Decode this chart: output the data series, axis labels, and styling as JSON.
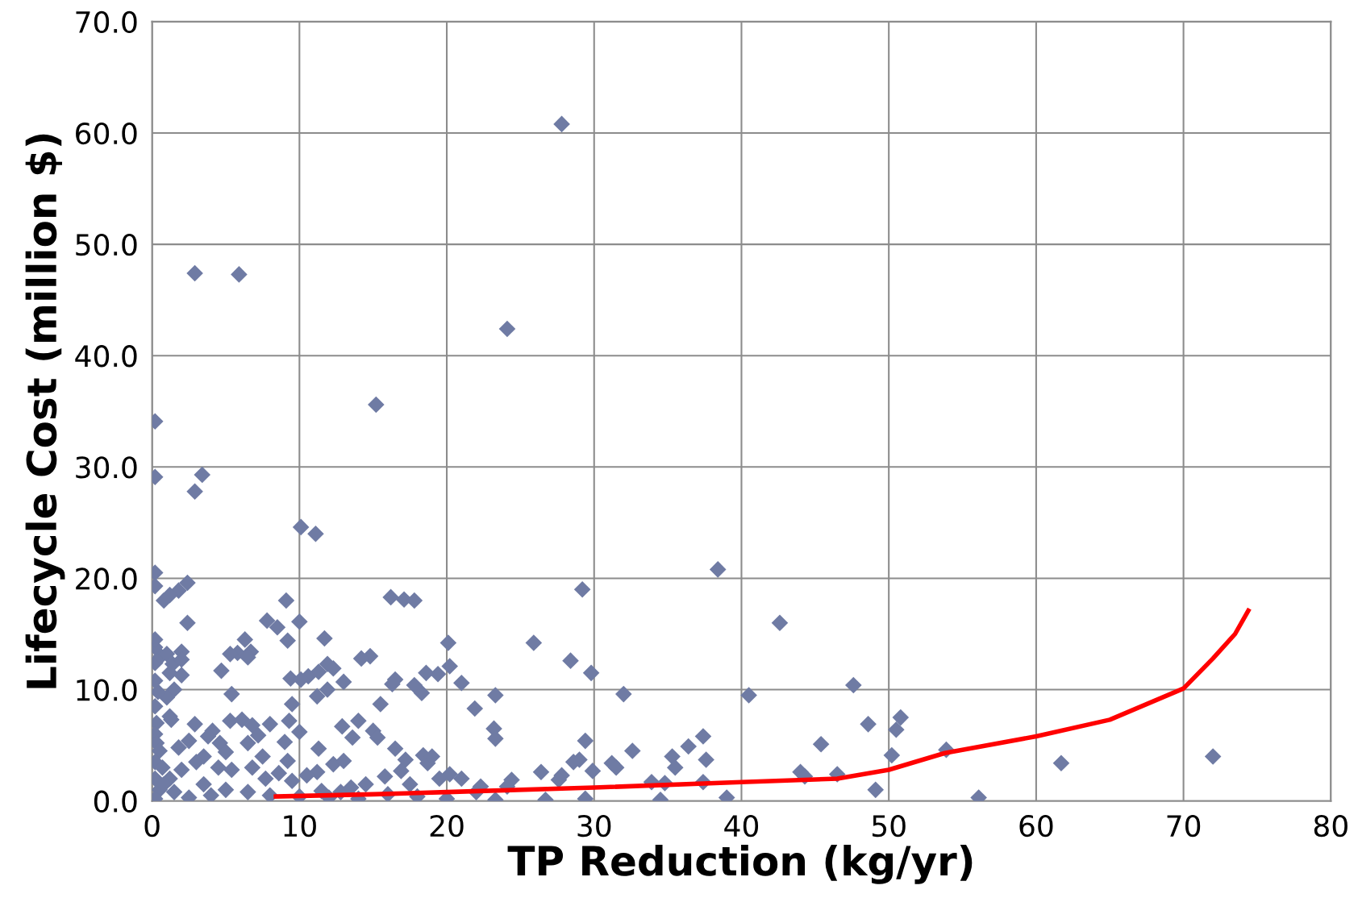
{
  "chart_data": {
    "type": "scatter",
    "xlabel": "TP Reduction (kg/yr)",
    "ylabel": "Lifecycle Cost (million $)",
    "xlim": [
      0,
      80
    ],
    "xticks": [
      0,
      10,
      20,
      30,
      40,
      50,
      60,
      70,
      80
    ],
    "ylim": [
      0,
      70
    ],
    "yticks": [
      {
        "value": 0,
        "label": "0.0"
      },
      {
        "value": 10,
        "label": "10.0"
      },
      {
        "value": 20,
        "label": "20.0"
      },
      {
        "value": 30,
        "label": "30.0"
      },
      {
        "value": 40,
        "label": "40.0"
      },
      {
        "value": 50,
        "label": "50.0"
      },
      {
        "value": 60,
        "label": "60.0"
      },
      {
        "value": 70,
        "label": "70.0"
      }
    ],
    "grid": true,
    "legend": false,
    "series": [
      {
        "color": "#6f7ba4",
        "marker": "diamond",
        "x": [
          27.8,
          2.9,
          5.9,
          24.1,
          15.2,
          0.2,
          0.2,
          3.4,
          2.9,
          10.1,
          11.1,
          0.2,
          0.2,
          2.4,
          1.8,
          1.2,
          0.8,
          38.4,
          29.2,
          16.2,
          17.1,
          17.8,
          9.1,
          7.8,
          8.5,
          10.0,
          9.2,
          11.7,
          2.4,
          42.6,
          6.3,
          5.8,
          6.7,
          6.5,
          5.3,
          20.1,
          25.9,
          14.8,
          14.2,
          11.9,
          12.3,
          11.3,
          10.6,
          9.4,
          10.1,
          28.4,
          20.2,
          19.4,
          18.6,
          29.8,
          13.0,
          16.5,
          16.3,
          17.8,
          18.3,
          21.0,
          11.2,
          11.9,
          0.2,
          0.6,
          0.2,
          0.2,
          1.0,
          2.0,
          1.4,
          2.0,
          1.2,
          2.0,
          1.5,
          1.0,
          0.4,
          0.2,
          0.2,
          0.3,
          1.2,
          0.2,
          0.3,
          0.5,
          0.2,
          0.7,
          0.2,
          0.5,
          0.2,
          40.5,
          47.6,
          32.0,
          23.3,
          21.9,
          15.5,
          4.7,
          5.4,
          1.3,
          2.9,
          4.1,
          3.8,
          5.3,
          6.1,
          6.8,
          8.0,
          7.2,
          6.5,
          4.6,
          2.5,
          1.8,
          3.5,
          5.0,
          7.5,
          9.0,
          9.3,
          9.5,
          10.0,
          13.6,
          12.9,
          15.0,
          15.3,
          14.0,
          11.3,
          12.3,
          13.0,
          23.2,
          23.3,
          29.4,
          32.6,
          31.2,
          31.5,
          29.0,
          28.6,
          36.4,
          37.4,
          37.6,
          35.3,
          35.5,
          37.4,
          45.4,
          48.6,
          50.8,
          50.5,
          50.2,
          53.9,
          49.1,
          46.5,
          44.0,
          44.3,
          56.1,
          61.7,
          72.0,
          39.0,
          34.5,
          29.4,
          26.7,
          23.3,
          26.4,
          27.8,
          27.6,
          29.9,
          33.9,
          34.8,
          24.4,
          24.1,
          22.3,
          21.0,
          20.2,
          19.5,
          18.7,
          18.4,
          19.0,
          17.2,
          16.5,
          16.9,
          15.8,
          14.5,
          12.8,
          11.2,
          10.5,
          9.2,
          8.6,
          7.7,
          6.8,
          5.4,
          4.5,
          3.0,
          2.0,
          1.2,
          3.5,
          5.0,
          6.5,
          8.0,
          10.0,
          12.0,
          14.0,
          16.0,
          18.0,
          20.0,
          22.0,
          13.5,
          17.5,
          9.5,
          11.5,
          4.0,
          2.5,
          1.5,
          0.8
        ],
        "values": [
          60.8,
          47.4,
          47.3,
          42.4,
          35.6,
          34.1,
          29.1,
          29.3,
          27.8,
          24.6,
          24.0,
          20.5,
          19.3,
          19.6,
          18.9,
          18.5,
          18.0,
          20.8,
          19.0,
          18.3,
          18.1,
          18.0,
          18.0,
          16.2,
          15.6,
          16.1,
          14.4,
          14.6,
          16.0,
          16.0,
          14.5,
          13.3,
          13.4,
          12.9,
          13.2,
          14.2,
          14.2,
          13.0,
          12.8,
          12.3,
          11.9,
          11.6,
          11.2,
          11.0,
          10.9,
          12.6,
          12.1,
          11.4,
          11.5,
          11.5,
          10.7,
          10.9,
          10.5,
          10.4,
          9.7,
          10.6,
          9.4,
          10.0,
          12.4,
          13.0,
          13.8,
          14.5,
          13.2,
          13.4,
          12.3,
          12.7,
          11.5,
          11.3,
          10.0,
          9.3,
          9.8,
          10.8,
          8.5,
          7.0,
          7.6,
          6.0,
          5.2,
          4.5,
          3.5,
          3.0,
          2.0,
          1.0,
          0.2,
          9.5,
          10.4,
          9.6,
          9.5,
          8.3,
          8.7,
          11.7,
          9.6,
          7.3,
          6.9,
          6.3,
          5.8,
          7.2,
          7.3,
          6.8,
          6.9,
          5.9,
          5.2,
          5.2,
          5.4,
          4.8,
          4.0,
          4.4,
          4.0,
          5.3,
          7.2,
          8.7,
          6.2,
          5.7,
          6.7,
          6.3,
          5.7,
          7.2,
          4.7,
          3.3,
          3.6,
          6.5,
          5.6,
          5.4,
          4.5,
          3.4,
          3.0,
          3.7,
          3.5,
          4.9,
          5.8,
          3.7,
          4.0,
          3.0,
          1.7,
          5.1,
          6.9,
          7.5,
          6.4,
          4.1,
          4.6,
          1.0,
          2.4,
          2.6,
          2.2,
          0.3,
          3.4,
          4.0,
          0.3,
          0.1,
          0.2,
          0.1,
          0.1,
          2.6,
          2.3,
          1.9,
          2.7,
          1.7,
          1.6,
          1.9,
          1.3,
          1.3,
          2.0,
          2.4,
          2.0,
          3.4,
          4.1,
          4.0,
          3.7,
          4.7,
          2.7,
          2.2,
          1.5,
          0.8,
          2.6,
          2.3,
          3.6,
          2.5,
          2.0,
          3.0,
          2.8,
          3.0,
          3.5,
          2.8,
          2.0,
          1.5,
          1.0,
          0.8,
          0.5,
          0.4,
          0.3,
          0.2,
          0.6,
          0.4,
          0.2,
          0.8,
          1.2,
          1.5,
          1.8,
          0.9,
          0.5,
          0.3,
          0.8,
          1.5
        ]
      },
      {
        "type": "line",
        "color": "#ff0000",
        "marker": "none",
        "line_style": "solid",
        "x": [
          8.4,
          15,
          20,
          30,
          40,
          46.5,
          50,
          53.8,
          60,
          65,
          70,
          72,
          73.5,
          74.4
        ],
        "values": [
          0.4,
          0.6,
          0.8,
          1.2,
          1.7,
          2.0,
          2.8,
          4.3,
          5.8,
          7.3,
          10.1,
          12.8,
          15.0,
          17.1
        ]
      }
    ]
  }
}
